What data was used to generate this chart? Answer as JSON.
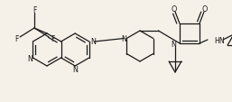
{
  "background_color": "#f5f0e8",
  "bond_color": "#1a1a1a",
  "figsize": [
    2.57,
    1.14
  ],
  "dpi": 100,
  "xlim": [
    0,
    257
  ],
  "ylim": [
    0,
    114
  ]
}
